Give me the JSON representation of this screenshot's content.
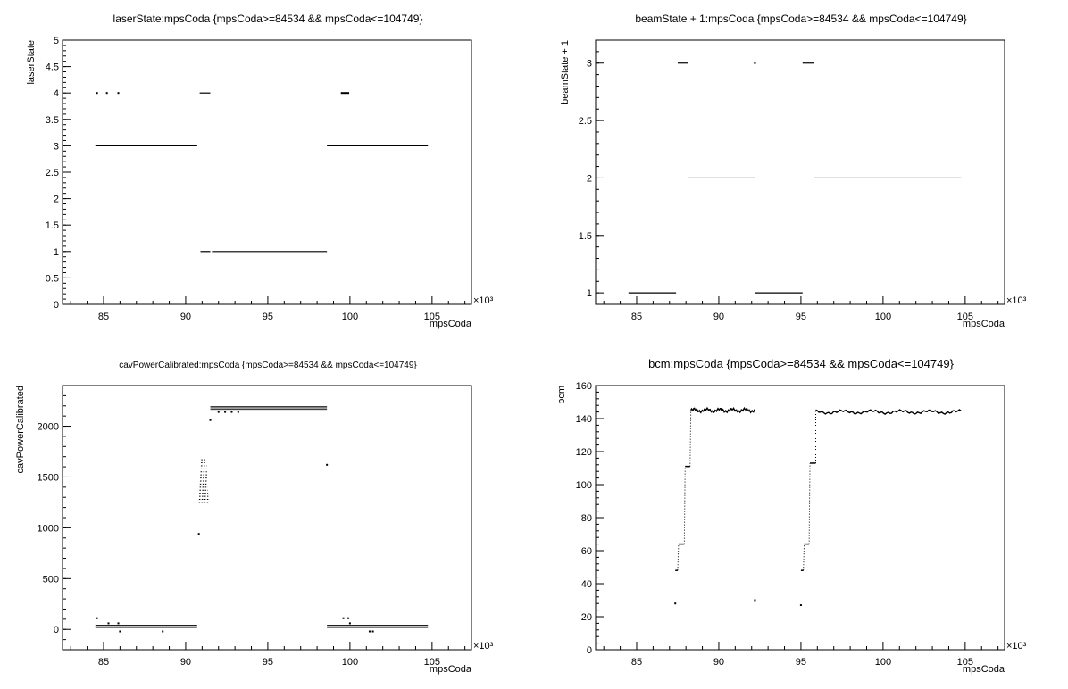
{
  "chart_data": [
    {
      "type": "scatter",
      "title": "laserState:mpsCoda {mpsCoda>=84534 && mpsCoda<=104749}",
      "xlabel": "mpsCoda",
      "ylabel": "laserState",
      "x_multiplier": "×10³",
      "xlim": [
        82.5,
        107.4
      ],
      "ylim": [
        0,
        5
      ],
      "xticks": [
        "85",
        "90",
        "95",
        "100",
        "105"
      ],
      "yticks": [
        "0",
        "0.5",
        "1",
        "1.5",
        "2",
        "2.5",
        "3",
        "3.5",
        "4",
        "4.5",
        "5"
      ],
      "series": [
        {
          "segments": [
            {
              "x": [
                84.5,
                90.7
              ],
              "y": 3
            },
            {
              "x": [
                98.6,
                104.75
              ],
              "y": 3
            },
            {
              "x": [
                90.9,
                91.5
              ],
              "y": 1
            },
            {
              "x": [
                91.6,
                98.6
              ],
              "y": 1
            },
            {
              "x": [
                90.85,
                91.5
              ],
              "y": 4
            }
          ],
          "points": [
            {
              "x": 84.6,
              "y": 4
            },
            {
              "x": 85.2,
              "y": 4
            },
            {
              "x": 85.9,
              "y": 4
            },
            {
              "x": 99.5,
              "y": 4
            },
            {
              "x": 99.6,
              "y": 4
            },
            {
              "x": 99.7,
              "y": 4
            },
            {
              "x": 99.8,
              "y": 4
            },
            {
              "x": 99.9,
              "y": 4
            }
          ]
        }
      ]
    },
    {
      "type": "scatter",
      "title": "beamState + 1:mpsCoda {mpsCoda>=84534 && mpsCoda<=104749}",
      "xlabel": "mpsCoda",
      "ylabel": "beamState + 1",
      "x_multiplier": "×10³",
      "xlim": [
        82.5,
        107.4
      ],
      "ylim": [
        0.9,
        3.2
      ],
      "xticks": [
        "85",
        "90",
        "95",
        "100",
        "105"
      ],
      "yticks": [
        "1",
        "1.5",
        "2",
        "2.5",
        "3"
      ],
      "series": [
        {
          "segments": [
            {
              "x": [
                84.5,
                87.4
              ],
              "y": 1
            },
            {
              "x": [
                92.2,
                95.1
              ],
              "y": 1
            },
            {
              "x": [
                88.1,
                92.2
              ],
              "y": 2
            },
            {
              "x": [
                95.8,
                104.75
              ],
              "y": 2
            },
            {
              "x": [
                87.5,
                88.1
              ],
              "y": 3
            },
            {
              "x": [
                95.1,
                95.8
              ],
              "y": 3
            }
          ],
          "points": [
            {
              "x": 92.2,
              "y": 3
            }
          ]
        }
      ]
    },
    {
      "type": "scatter",
      "title": "cavPowerCalibrated:mpsCoda {mpsCoda>=84534 && mpsCoda<=104749}",
      "xlabel": "mpsCoda",
      "ylabel": "cavPowerCalibrated",
      "x_multiplier": "×10³",
      "xlim": [
        82.5,
        107.4
      ],
      "ylim": [
        -200,
        2400
      ],
      "xticks": [
        "85",
        "90",
        "95",
        "100",
        "105"
      ],
      "yticks": [
        "0",
        "500",
        "1000",
        "1500",
        "2000"
      ],
      "series": [
        {
          "segments": [
            {
              "x": [
                84.5,
                90.7
              ],
              "y": 40
            },
            {
              "x": [
                84.5,
                90.7
              ],
              "y": 20
            },
            {
              "x": [
                98.6,
                104.75
              ],
              "y": 40
            },
            {
              "x": [
                98.6,
                104.75
              ],
              "y": 20
            },
            {
              "x": [
                91.5,
                98.6
              ],
              "y": 2190
            },
            {
              "x": [
                91.5,
                98.6
              ],
              "y": 2170
            },
            {
              "x": [
                91.5,
                98.6
              ],
              "y": 2150
            }
          ],
          "points": [
            {
              "x": 84.6,
              "y": 110
            },
            {
              "x": 85.3,
              "y": 60
            },
            {
              "x": 85.9,
              "y": 60
            },
            {
              "x": 86.0,
              "y": -20
            },
            {
              "x": 88.6,
              "y": -20
            },
            {
              "x": 90.8,
              "y": 940
            },
            {
              "x": 91.5,
              "y": 2060
            },
            {
              "x": 98.6,
              "y": 1620
            },
            {
              "x": 99.6,
              "y": 110
            },
            {
              "x": 99.9,
              "y": 110
            },
            {
              "x": 100.0,
              "y": 60
            },
            {
              "x": 101.2,
              "y": -20
            },
            {
              "x": 101.4,
              "y": -20
            },
            {
              "x": 92.0,
              "y": 2140
            },
            {
              "x": 92.4,
              "y": 2140
            },
            {
              "x": 92.8,
              "y": 2140
            },
            {
              "x": 93.2,
              "y": 2140
            }
          ],
          "cluster": {
            "x": [
              90.8,
              91.4
            ],
            "y": [
              1250,
              1680
            ]
          }
        }
      ]
    },
    {
      "type": "scatter",
      "title": "bcm:mpsCoda {mpsCoda>=84534 && mpsCoda<=104749}",
      "xlabel": "mpsCoda",
      "ylabel": "bcm",
      "x_multiplier": "×10³",
      "xlim": [
        82.5,
        107.4
      ],
      "ylim": [
        0,
        160
      ],
      "xticks": [
        "85",
        "90",
        "95",
        "100",
        "105"
      ],
      "yticks": [
        "0",
        "20",
        "40",
        "60",
        "80",
        "100",
        "120",
        "140",
        "160"
      ],
      "series": [
        {
          "steps": [
            {
              "x": [
                87.35,
                87.5
              ],
              "y": 48
            },
            {
              "x": [
                87.55,
                87.9
              ],
              "y": 64
            },
            {
              "x": [
                87.95,
                88.25
              ],
              "y": 111
            },
            {
              "x": [
                95.0,
                95.15
              ],
              "y": 48
            },
            {
              "x": [
                95.2,
                95.5
              ],
              "y": 64
            },
            {
              "x": [
                95.55,
                95.9
              ],
              "y": 113
            }
          ],
          "plateaus": [
            {
              "x": [
                88.3,
                92.2
              ],
              "y": 145
            },
            {
              "x": [
                95.9,
                104.75
              ],
              "y": 144
            }
          ],
          "points": [
            {
              "x": 87.35,
              "y": 28
            },
            {
              "x": 92.2,
              "y": 30
            },
            {
              "x": 95.0,
              "y": 27
            }
          ]
        }
      ]
    }
  ]
}
